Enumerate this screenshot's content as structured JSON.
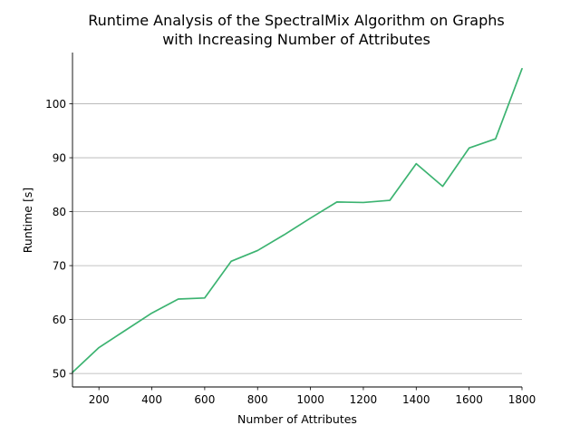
{
  "chart_data": {
    "type": "line",
    "title_lines": [
      "Runtime Analysis of the SpectralMix Algorithm on Graphs",
      "with Increasing Number of Attributes"
    ],
    "xlabel": "Number of Attributes",
    "ylabel": "Runtime [s]",
    "xlim": [
      100,
      1800
    ],
    "ylim": [
      47.5,
      109.5
    ],
    "xticks": [
      200,
      400,
      600,
      800,
      1000,
      1200,
      1400,
      1600,
      1800
    ],
    "yticks": [
      50,
      60,
      70,
      80,
      90,
      100
    ],
    "grid": "horizontal",
    "line_color": "#3cb371",
    "series": [
      {
        "x": [
          100,
          200,
          300,
          400,
          500,
          600,
          700,
          800,
          900,
          1000,
          1100,
          1200,
          1300,
          1400,
          1500,
          1600,
          1700,
          1800
        ],
        "values": [
          50.2,
          54.8,
          58.0,
          61.2,
          63.8,
          64.0,
          70.8,
          72.8,
          75.7,
          78.8,
          81.8,
          81.7,
          82.1,
          88.9,
          84.7,
          91.8,
          93.5,
          106.5
        ]
      }
    ]
  }
}
